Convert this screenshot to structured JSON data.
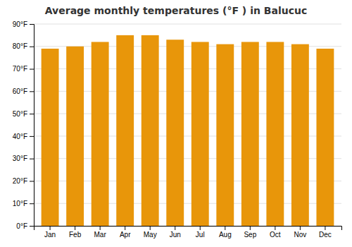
{
  "chart_data": {
    "type": "bar",
    "title": "Average monthly temperatures (°F ) in Balucuc",
    "categories": [
      "Jan",
      "Feb",
      "Mar",
      "Apr",
      "May",
      "Jun",
      "Jul",
      "Aug",
      "Sep",
      "Oct",
      "Nov",
      "Dec"
    ],
    "values": [
      79,
      80,
      82,
      85,
      85,
      83,
      82,
      81,
      82,
      82,
      81,
      79
    ],
    "color": "#E8960A",
    "ylim": [
      0,
      90
    ],
    "yticks": [
      {
        "value": 0,
        "label": "0°F"
      },
      {
        "value": 10,
        "label": "10°F"
      },
      {
        "value": 20,
        "label": "20°F"
      },
      {
        "value": 30,
        "label": "30°F"
      },
      {
        "value": 40,
        "label": "40°F"
      },
      {
        "value": 50,
        "label": "50°F"
      },
      {
        "value": 60,
        "label": "60°F"
      },
      {
        "value": 70,
        "label": "70°F"
      },
      {
        "value": 80,
        "label": "80°F"
      },
      {
        "value": 90,
        "label": "90°F"
      }
    ],
    "grid": true
  }
}
